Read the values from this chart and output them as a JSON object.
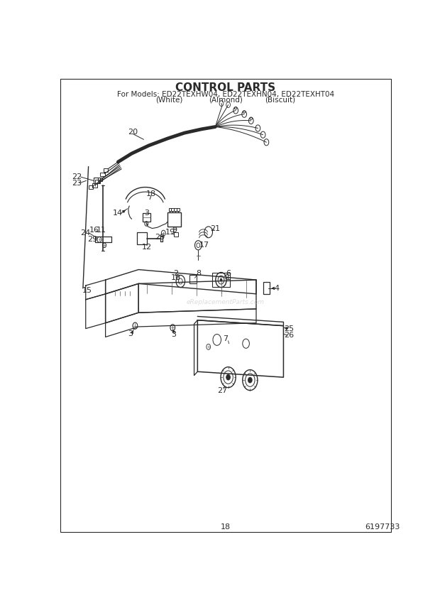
{
  "title": "CONTROL PARTS",
  "subtitle1": "For Models: ED22TEXHW04, ED22TEXHN04, ED22TEXHT04",
  "subtitle2_white": "(White)",
  "subtitle2_almond": "(Almond)",
  "subtitle2_biscuit": "(Biscuit)",
  "page_num": "18",
  "doc_num": "6197733",
  "bg_color": "#ffffff",
  "lc": "#2a2a2a",
  "lc_light": "#555555",
  "title_fontsize": 11,
  "subtitle_fontsize": 7.5,
  "label_fontsize": 8.0,
  "watermark": "eReplacementParts.com",
  "figw": 6.2,
  "figh": 8.56,
  "dpi": 100,
  "border": [
    0.015,
    0.02,
    0.97,
    0.968
  ]
}
